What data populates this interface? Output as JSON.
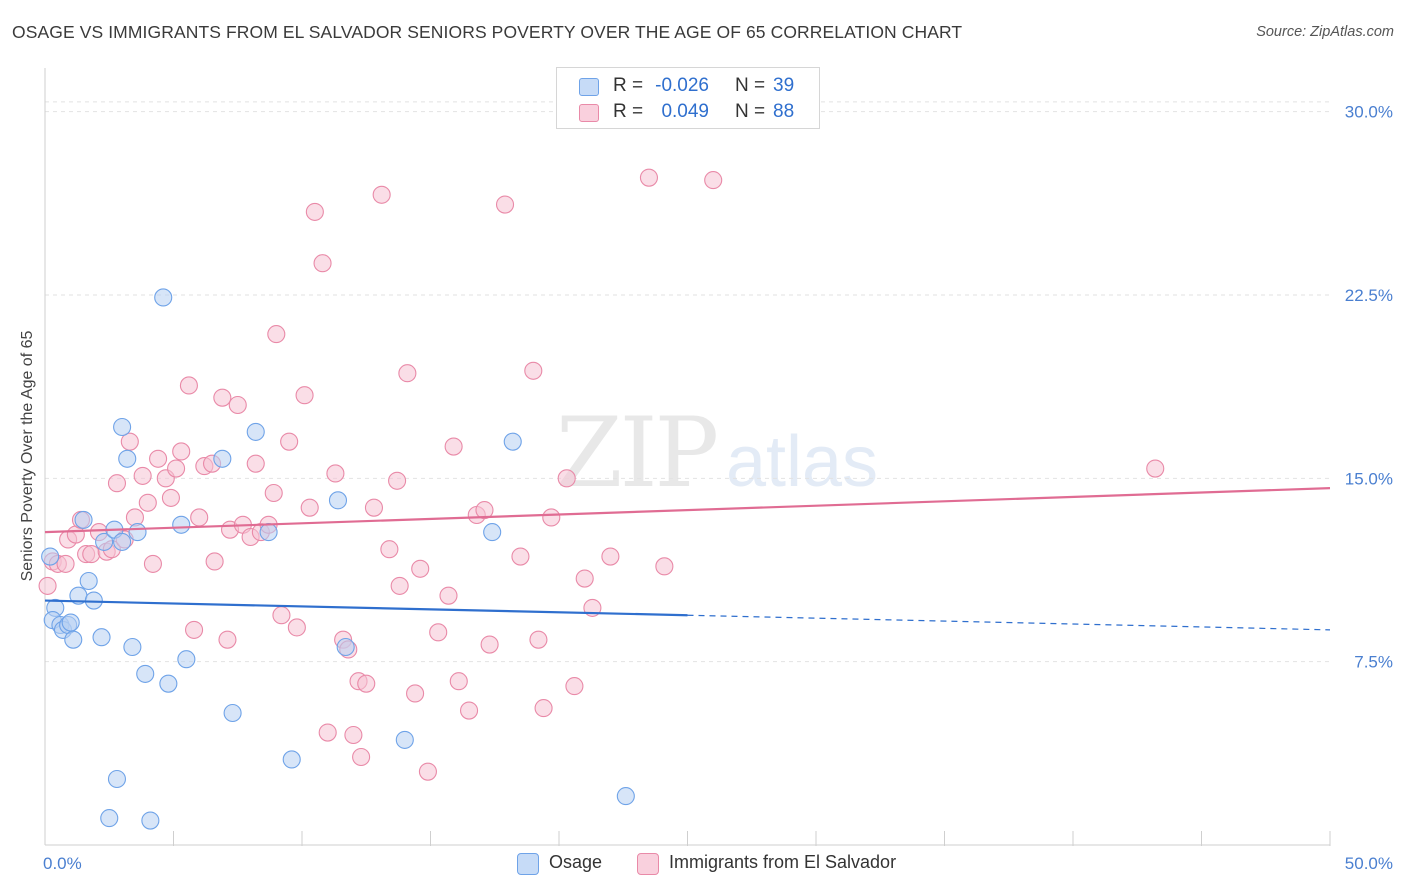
{
  "title": "OSAGE VS IMMIGRANTS FROM EL SALVADOR SENIORS POVERTY OVER THE AGE OF 65 CORRELATION CHART",
  "source": "Source: ZipAtlas.com",
  "watermark": {
    "zip": "ZIP",
    "atlas": "atlas"
  },
  "chart_data": {
    "type": "scatter",
    "xlabel": "",
    "ylabel": "Seniors Poverty Over the Age of 65",
    "xlim": [
      0,
      50
    ],
    "ylim": [
      0,
      31.5
    ],
    "x_tick_labels": {
      "left": "0.0%",
      "right": "50.0%"
    },
    "y_ticks": [
      7.5,
      15.0,
      22.5,
      30.0
    ],
    "y_tick_labels": [
      "7.5%",
      "15.0%",
      "22.5%",
      "30.0%"
    ],
    "grid": true,
    "legend_placement": "top-center",
    "series": [
      {
        "name": "Osage",
        "color": "#6fa3e8",
        "fill": "#b7d0f3",
        "R_label": "R =",
        "R": "-0.026",
        "N_label": "N =",
        "N": "39",
        "trend": {
          "x0": 0,
          "y0": 10.0,
          "x1": 25,
          "y1": 9.4,
          "dash_to_x": 50,
          "dash_to_y": 8.8,
          "color": "#2f6fce"
        },
        "points": [
          [
            0.2,
            11.8
          ],
          [
            0.4,
            9.7
          ],
          [
            0.3,
            9.2
          ],
          [
            0.6,
            9.0
          ],
          [
            0.7,
            8.8
          ],
          [
            0.9,
            9.0
          ],
          [
            1.0,
            9.1
          ],
          [
            1.1,
            8.4
          ],
          [
            1.3,
            10.2
          ],
          [
            1.5,
            13.3
          ],
          [
            1.7,
            10.8
          ],
          [
            1.9,
            10.0
          ],
          [
            2.2,
            8.5
          ],
          [
            2.3,
            12.4
          ],
          [
            2.5,
            1.1
          ],
          [
            2.7,
            12.9
          ],
          [
            2.8,
            2.7
          ],
          [
            3.0,
            12.4
          ],
          [
            3.0,
            17.1
          ],
          [
            3.2,
            15.8
          ],
          [
            3.4,
            8.1
          ],
          [
            3.9,
            7.0
          ],
          [
            4.1,
            1.0
          ],
          [
            4.6,
            22.4
          ],
          [
            4.8,
            6.6
          ],
          [
            5.3,
            13.1
          ],
          [
            5.5,
            7.6
          ],
          [
            6.9,
            15.8
          ],
          [
            7.3,
            5.4
          ],
          [
            8.2,
            16.9
          ],
          [
            8.7,
            12.8
          ],
          [
            9.6,
            3.5
          ],
          [
            11.4,
            14.1
          ],
          [
            11.7,
            8.1
          ],
          [
            14.0,
            4.3
          ],
          [
            17.4,
            12.8
          ],
          [
            18.2,
            16.5
          ],
          [
            22.6,
            2.0
          ],
          [
            3.6,
            12.8
          ]
        ]
      },
      {
        "name": "Immigrants from El Salvador",
        "color": "#e98aa8",
        "fill": "#f6c3d3",
        "R_label": "R =",
        "R": "0.049",
        "N_label": "N =",
        "N": "88",
        "trend": {
          "x0": 0,
          "y0": 12.8,
          "x1": 50,
          "y1": 14.6,
          "color": "#e06c93"
        },
        "points": [
          [
            0.1,
            10.6
          ],
          [
            0.3,
            11.6
          ],
          [
            0.5,
            11.5
          ],
          [
            0.8,
            11.5
          ],
          [
            0.9,
            12.5
          ],
          [
            1.2,
            12.7
          ],
          [
            1.4,
            13.3
          ],
          [
            1.6,
            11.9
          ],
          [
            1.8,
            11.9
          ],
          [
            2.1,
            12.8
          ],
          [
            2.4,
            12.0
          ],
          [
            2.6,
            12.1
          ],
          [
            2.8,
            14.8
          ],
          [
            3.1,
            12.5
          ],
          [
            3.3,
            16.5
          ],
          [
            3.5,
            13.4
          ],
          [
            3.8,
            15.1
          ],
          [
            4.0,
            14.0
          ],
          [
            4.2,
            11.5
          ],
          [
            4.4,
            15.8
          ],
          [
            4.7,
            15.0
          ],
          [
            4.9,
            14.2
          ],
          [
            5.1,
            15.4
          ],
          [
            5.3,
            16.1
          ],
          [
            5.6,
            18.8
          ],
          [
            5.8,
            8.8
          ],
          [
            6.0,
            13.4
          ],
          [
            6.2,
            15.5
          ],
          [
            6.5,
            15.6
          ],
          [
            6.6,
            11.6
          ],
          [
            6.9,
            18.3
          ],
          [
            7.1,
            8.4
          ],
          [
            7.2,
            12.9
          ],
          [
            7.5,
            18.0
          ],
          [
            7.7,
            13.1
          ],
          [
            8.0,
            12.6
          ],
          [
            8.2,
            15.6
          ],
          [
            8.4,
            12.8
          ],
          [
            8.7,
            13.1
          ],
          [
            8.9,
            14.4
          ],
          [
            9.0,
            20.9
          ],
          [
            9.2,
            9.4
          ],
          [
            9.5,
            16.5
          ],
          [
            9.8,
            8.9
          ],
          [
            10.1,
            18.4
          ],
          [
            10.3,
            13.8
          ],
          [
            10.5,
            25.9
          ],
          [
            10.8,
            23.8
          ],
          [
            11.0,
            4.6
          ],
          [
            11.3,
            15.2
          ],
          [
            11.6,
            8.4
          ],
          [
            11.8,
            8.0
          ],
          [
            12.0,
            4.5
          ],
          [
            12.2,
            6.7
          ],
          [
            12.3,
            3.6
          ],
          [
            12.5,
            6.6
          ],
          [
            12.8,
            13.8
          ],
          [
            13.1,
            26.6
          ],
          [
            13.4,
            12.1
          ],
          [
            13.7,
            14.9
          ],
          [
            13.8,
            10.6
          ],
          [
            14.1,
            19.3
          ],
          [
            14.4,
            6.2
          ],
          [
            14.6,
            11.3
          ],
          [
            14.9,
            3.0
          ],
          [
            15.3,
            8.7
          ],
          [
            15.7,
            10.2
          ],
          [
            15.9,
            16.3
          ],
          [
            16.1,
            6.7
          ],
          [
            16.5,
            5.5
          ],
          [
            16.8,
            13.5
          ],
          [
            17.1,
            13.7
          ],
          [
            17.3,
            8.2
          ],
          [
            17.9,
            26.2
          ],
          [
            18.5,
            11.8
          ],
          [
            19.0,
            19.4
          ],
          [
            19.2,
            8.4
          ],
          [
            19.4,
            5.6
          ],
          [
            19.7,
            13.4
          ],
          [
            20.3,
            15.0
          ],
          [
            20.6,
            6.5
          ],
          [
            21.0,
            10.9
          ],
          [
            21.3,
            9.7
          ],
          [
            23.5,
            27.3
          ],
          [
            24.1,
            11.4
          ],
          [
            26.0,
            27.2
          ],
          [
            43.2,
            15.4
          ],
          [
            22.0,
            11.8
          ]
        ]
      }
    ]
  }
}
